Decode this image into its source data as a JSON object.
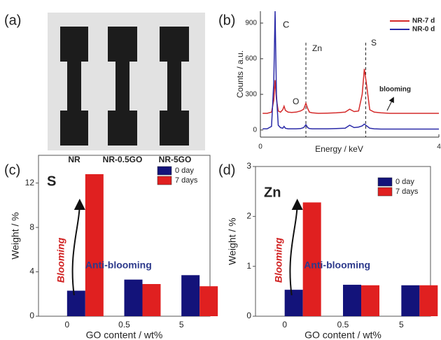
{
  "photo": {
    "label": "(a)",
    "samples": [
      "NR",
      "NR-0.5GO",
      "NR-5GO"
    ]
  },
  "chart_data": [
    {
      "type": "line",
      "panel": "(b)",
      "x_label": "Energy / keV",
      "y_label": "Counts / a.u.",
      "xlim": [
        0,
        4
      ],
      "xticks": [
        0,
        4
      ],
      "ylim": [
        -60,
        1000
      ],
      "yticks": [
        0,
        300,
        600,
        900
      ],
      "x": [
        0.05,
        0.15,
        0.25,
        0.3,
        0.33,
        0.36,
        0.4,
        0.45,
        0.5,
        0.53,
        0.56,
        0.62,
        0.7,
        0.8,
        0.9,
        0.97,
        1.02,
        1.06,
        1.1,
        1.16,
        1.3,
        1.5,
        1.7,
        1.9,
        2.0,
        2.1,
        2.2,
        2.28,
        2.33,
        2.38,
        2.45,
        2.55,
        2.7,
        2.9,
        3.2,
        3.5,
        3.8,
        4.0
      ],
      "series": [
        {
          "name": "NR-7 d",
          "color": "#d42a2a",
          "values": [
            140,
            140,
            150,
            250,
            420,
            260,
            160,
            150,
            170,
            200,
            165,
            150,
            148,
            150,
            160,
            175,
            225,
            180,
            150,
            145,
            140,
            142,
            145,
            150,
            175,
            155,
            160,
            300,
            515,
            380,
            170,
            150,
            145,
            140,
            140,
            140,
            140,
            140
          ]
        },
        {
          "name": "NR-0 d",
          "color": "#2a2aa8",
          "values": [
            10,
            10,
            30,
            400,
            1000,
            300,
            40,
            20,
            15,
            30,
            15,
            10,
            10,
            10,
            12,
            20,
            45,
            20,
            12,
            10,
            10,
            10,
            12,
            15,
            40,
            20,
            25,
            35,
            50,
            35,
            15,
            10,
            8,
            8,
            8,
            8,
            8,
            8
          ]
        }
      ],
      "vlines": [
        1.02,
        2.36
      ],
      "annotations": [
        "C",
        "O",
        "Zn",
        "S",
        "blooming"
      ],
      "legend": "upper right"
    },
    {
      "type": "bar",
      "panel": "(c)",
      "title": "S",
      "x_label": "GO content / wt%",
      "y_label": "Weight / %",
      "categories": [
        "0",
        "0.5",
        "5"
      ],
      "ylim": [
        0,
        14.5
      ],
      "yticks": [
        0,
        4,
        8,
        12
      ],
      "series": [
        {
          "name": "0 day",
          "color": "#13137a",
          "values": [
            2.3,
            3.3,
            3.7
          ]
        },
        {
          "name": "7 days",
          "color": "#e02020",
          "values": [
            12.8,
            2.9,
            2.7
          ]
        }
      ],
      "annotations": [
        "Blooming",
        "Anti-blooming"
      ],
      "legend": "upper right"
    },
    {
      "type": "bar",
      "panel": "(d)",
      "title": "Zn",
      "x_label": "GO content / wt%",
      "y_label": "Weight / %",
      "categories": [
        "0",
        "0.5",
        "5"
      ],
      "ylim": [
        0,
        3
      ],
      "yticks": [
        0,
        1,
        2,
        3
      ],
      "series": [
        {
          "name": "0 day",
          "color": "#13137a",
          "values": [
            0.53,
            0.63,
            0.62
          ]
        },
        {
          "name": "7 days",
          "color": "#e02020",
          "values": [
            2.28,
            0.62,
            0.62
          ]
        }
      ],
      "annotations": [
        "Blooming",
        "Anti-blooming"
      ],
      "legend": "upper right"
    }
  ]
}
